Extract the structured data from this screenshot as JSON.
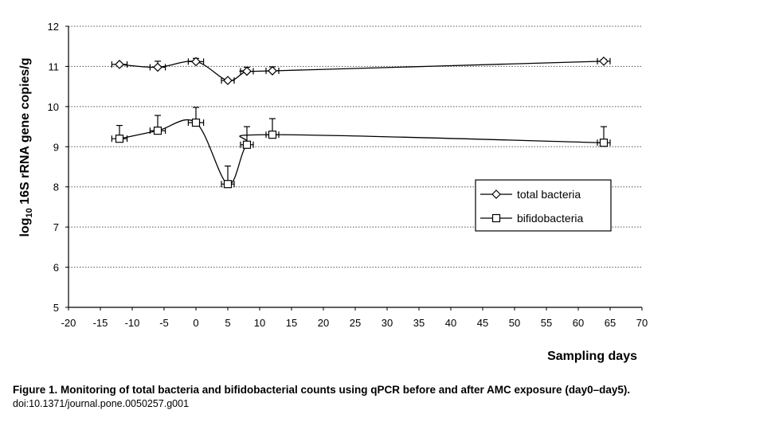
{
  "chart_data": {
    "type": "line",
    "title": "",
    "xlabel": "Sampling days",
    "ylabel": "log10 16S rRNA gene copies/g",
    "ylabel_parts": {
      "prefix": "log",
      "sub": "10",
      "rest": " 16S rRNA  gene copies/g"
    },
    "xlim": [
      -20,
      70
    ],
    "ylim": [
      5,
      12
    ],
    "xticks": [
      -20,
      -15,
      -10,
      -5,
      0,
      5,
      10,
      15,
      20,
      25,
      30,
      35,
      40,
      45,
      50,
      55,
      60,
      65,
      70
    ],
    "yticks": [
      5,
      6,
      7,
      8,
      9,
      10,
      11,
      12
    ],
    "grid": "horizontal dotted",
    "legend_position": "right",
    "series": [
      {
        "name": "total bacteria",
        "marker": "diamond",
        "x": [
          -12,
          -6,
          0,
          5,
          8,
          12,
          64
        ],
        "y": [
          11.05,
          10.98,
          11.12,
          10.65,
          10.88,
          10.89,
          11.13
        ],
        "yerr": [
          0.02,
          0.15,
          0.08,
          0.03,
          0.1,
          0.1,
          0.04
        ],
        "xerr": [
          1.2,
          1.2,
          1.2,
          1.0,
          1.0,
          1.0,
          1.0
        ]
      },
      {
        "name": "bifidobacteria",
        "marker": "square",
        "x": [
          -12,
          -6,
          0,
          5,
          8,
          12,
          64
        ],
        "y": [
          9.2,
          9.4,
          9.6,
          8.07,
          9.05,
          9.3,
          9.1
        ],
        "yerr": [
          0.33,
          0.38,
          0.38,
          0.45,
          0.45,
          0.4,
          0.4
        ],
        "xerr": [
          1.2,
          1.2,
          1.2,
          1.0,
          1.0,
          1.0,
          1.0
        ]
      }
    ]
  },
  "caption": {
    "title": "Figure 1. Monitoring of total bacteria and bifidobacterial counts using qPCR before and after AMC exposure (day0–day5).",
    "doi": "doi:10.1371/journal.pone.0050257.g001"
  }
}
